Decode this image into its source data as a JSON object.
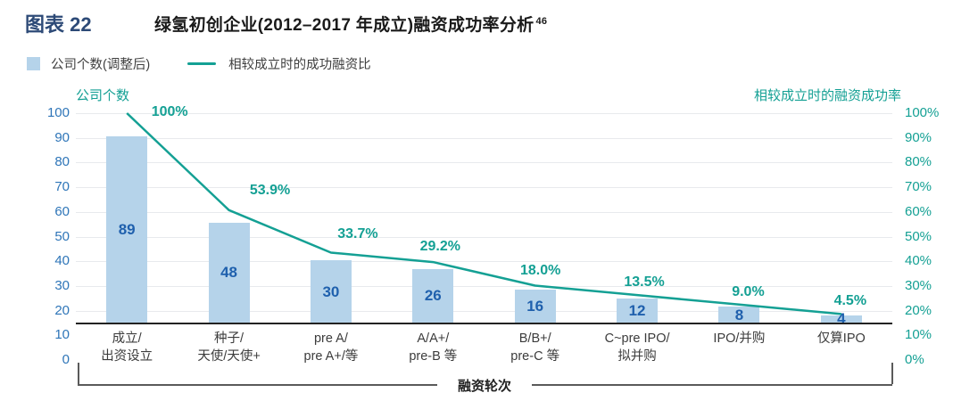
{
  "header": {
    "figure_label": "图表 22",
    "title": "绿氢初创企业(2012–2017 年成立)融资成功率分析",
    "title_superscript": "46"
  },
  "legend": {
    "bar_label": "公司个数(调整后)",
    "line_label": "相较成立时的成功融资比"
  },
  "chart_data": {
    "type": "bar+line",
    "title": "绿氢初创企业(2012–2017 年成立)融资成功率分析",
    "xlabel": "融资轮次",
    "categories": [
      "成立/\n出资设立",
      "种子/\n天使/天使+",
      "pre A/\npre A+/等",
      "A/A+/\npre-B 等",
      "B/B+/\npre-C 等",
      "C~pre IPO/\n拟并购",
      "IPO/并购",
      "仅算IPO"
    ],
    "series": [
      {
        "name": "公司个数(调整后)",
        "type": "bar",
        "axis": "left",
        "values": [
          89,
          48,
          30,
          26,
          16,
          12,
          8,
          4
        ]
      },
      {
        "name": "相较成立时的成功融资比",
        "type": "line",
        "axis": "right",
        "values": [
          100,
          53.9,
          33.7,
          29.2,
          18.0,
          13.5,
          9.0,
          4.5
        ],
        "labels": [
          "100%",
          "53.9%",
          "33.7%",
          "29.2%",
          "18.0%",
          "13.5%",
          "9.0%",
          "4.5%"
        ]
      }
    ],
    "left_axis": {
      "title": "公司个数",
      "ticks": [
        100,
        90,
        80,
        70,
        60,
        50,
        40,
        30,
        20,
        10,
        0
      ],
      "range": [
        0,
        100
      ]
    },
    "right_axis": {
      "title": "相较成立时的融资成功率",
      "ticks": [
        "100%",
        "90%",
        "80%",
        "70%",
        "60%",
        "50%",
        "40%",
        "30%",
        "20%",
        "10%",
        "0%"
      ],
      "range": [
        0,
        100
      ]
    },
    "grid": true,
    "legend_position": "top-left"
  },
  "colors": {
    "figure_label": "#2d4a77",
    "title_text": "#1a1a1a",
    "bar_fill": "#b5d3ea",
    "bar_value_text": "#1f60ad",
    "line": "#14a094",
    "left_tick": "#2e75b8",
    "right_tick": "#14a094",
    "gridline": "#e8eaed",
    "baseline": "#222222",
    "legend_text": "#3f3f3f",
    "category_text": "#3c3c3c",
    "bracket": "#5a5a5a"
  }
}
